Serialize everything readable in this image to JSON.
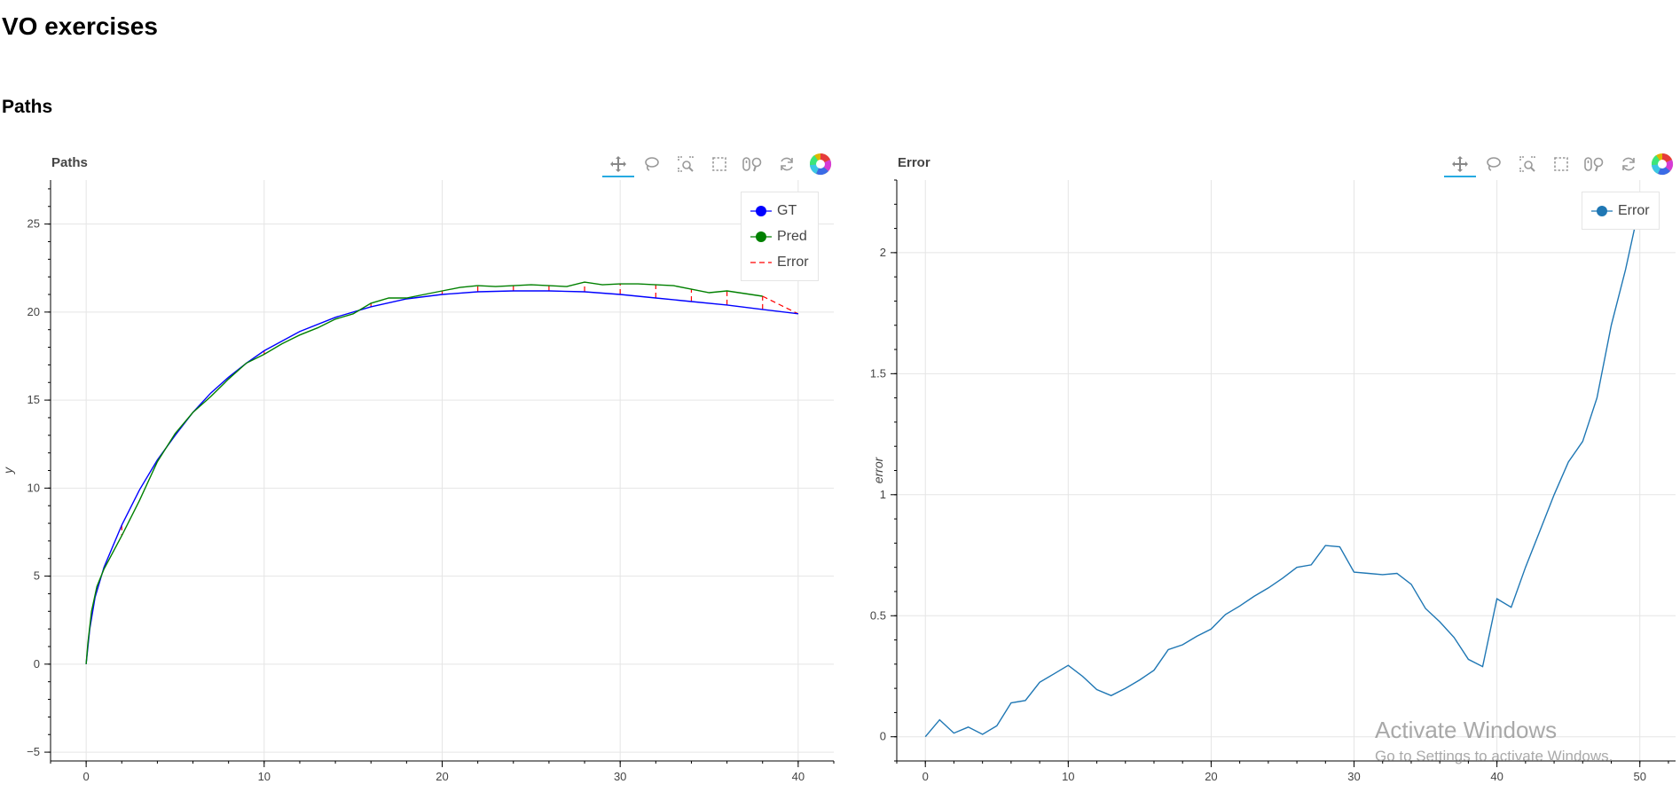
{
  "page": {
    "title": "VO exercises",
    "section_title": "Paths"
  },
  "toolbar": {
    "tools": [
      "pan-icon",
      "lasso-select-icon",
      "box-zoom-icon",
      "box-select-icon",
      "wheel-zoom-icon",
      "reset-icon",
      "bokeh-logo-icon"
    ],
    "active_tool": "pan-icon"
  },
  "watermark": {
    "line1": "Activate Windows",
    "line2": "Go to Settings to activate Windows."
  },
  "chart_data": [
    {
      "type": "line",
      "title": "Paths",
      "xlabel": "",
      "ylabel": "y",
      "xlim": [
        -2,
        42
      ],
      "ylim": [
        -5.5,
        27.5
      ],
      "x_ticks": [
        0,
        10,
        20,
        30,
        40
      ],
      "y_ticks": [
        -5,
        0,
        5,
        10,
        15,
        20,
        25
      ],
      "grid": true,
      "legend_position": "top-right",
      "series": [
        {
          "name": "GT",
          "color": "#0000ff",
          "x": [
            0,
            0.2,
            0.5,
            1,
            2,
            3,
            4,
            5,
            6,
            7,
            8,
            9,
            10,
            12,
            14,
            16,
            18,
            20,
            22,
            24,
            25,
            26,
            28,
            30,
            32,
            34,
            36,
            38,
            40
          ],
          "y": [
            0,
            2.0,
            3.8,
            5.5,
            7.9,
            9.9,
            11.6,
            13.0,
            14.3,
            15.4,
            16.3,
            17.1,
            17.8,
            18.9,
            19.7,
            20.3,
            20.75,
            21.0,
            21.15,
            21.2,
            21.2,
            21.2,
            21.15,
            21.0,
            20.8,
            20.6,
            20.4,
            20.15,
            19.9
          ]
        },
        {
          "name": "Pred",
          "color": "#008000",
          "x": [
            0,
            0.1,
            0.3,
            0.6,
            1,
            2,
            3,
            4,
            5,
            6,
            7,
            8,
            9,
            10,
            11,
            12,
            13,
            14,
            15,
            16,
            17,
            18,
            19,
            20,
            21,
            22,
            23,
            24,
            25,
            26,
            27,
            28,
            29,
            30,
            31,
            32,
            33,
            34,
            35,
            36,
            37,
            38
          ],
          "y": [
            0,
            1.2,
            3.0,
            4.4,
            5.4,
            7.3,
            9.3,
            11.5,
            13.1,
            14.3,
            15.2,
            16.2,
            17.1,
            17.6,
            18.2,
            18.7,
            19.1,
            19.6,
            19.9,
            20.5,
            20.8,
            20.8,
            21.0,
            21.2,
            21.4,
            21.5,
            21.45,
            21.5,
            21.55,
            21.5,
            21.45,
            21.7,
            21.55,
            21.6,
            21.6,
            21.55,
            21.5,
            21.3,
            21.1,
            21.2,
            21.05,
            20.9
          ]
        }
      ],
      "error_segments": [
        {
          "x": [
            2,
            2
          ],
          "y": [
            7.9,
            7.3
          ]
        },
        {
          "x": [
            4,
            4
          ],
          "y": [
            11.6,
            11.5
          ]
        },
        {
          "x": [
            10,
            10
          ],
          "y": [
            17.8,
            17.6
          ]
        },
        {
          "x": [
            16,
            16
          ],
          "y": [
            20.3,
            20.5
          ]
        },
        {
          "x": [
            18,
            18
          ],
          "y": [
            20.75,
            20.8
          ]
        },
        {
          "x": [
            20,
            20
          ],
          "y": [
            21.0,
            21.2
          ]
        },
        {
          "x": [
            22,
            22
          ],
          "y": [
            21.15,
            21.5
          ]
        },
        {
          "x": [
            24,
            24
          ],
          "y": [
            21.2,
            21.5
          ]
        },
        {
          "x": [
            26,
            26
          ],
          "y": [
            21.2,
            21.5
          ]
        },
        {
          "x": [
            28,
            28
          ],
          "y": [
            21.15,
            21.7
          ]
        },
        {
          "x": [
            30,
            30
          ],
          "y": [
            21.0,
            21.6
          ]
        },
        {
          "x": [
            32,
            32
          ],
          "y": [
            20.8,
            21.55
          ]
        },
        {
          "x": [
            34,
            34
          ],
          "y": [
            20.6,
            21.3
          ]
        },
        {
          "x": [
            36,
            36
          ],
          "y": [
            20.4,
            21.2
          ]
        },
        {
          "x": [
            38,
            38
          ],
          "y": [
            20.15,
            20.9
          ]
        },
        {
          "x": [
            38,
            40
          ],
          "y": [
            20.9,
            19.9
          ]
        }
      ],
      "legend": [
        "GT",
        "Pred",
        "Error"
      ],
      "error_color": "#ff0000"
    },
    {
      "type": "line",
      "title": "Error",
      "xlabel": "",
      "ylabel": "error",
      "xlim": [
        -2,
        52.5
      ],
      "ylim": [
        -0.1,
        2.3
      ],
      "x_ticks": [
        0,
        10,
        20,
        30,
        40,
        50
      ],
      "y_ticks": [
        0,
        0.5,
        1,
        1.5,
        2
      ],
      "grid": true,
      "legend_position": "top-right",
      "series": [
        {
          "name": "Error",
          "color": "#1f77b4",
          "x": [
            0,
            1,
            2,
            3,
            4,
            5,
            6,
            7,
            8,
            9,
            10,
            11,
            12,
            13,
            14,
            15,
            16,
            17,
            18,
            19,
            20,
            21,
            22,
            23,
            24,
            25,
            26,
            27,
            28,
            29,
            30,
            31,
            32,
            33,
            34,
            35,
            36,
            37,
            38,
            39,
            40,
            41,
            42,
            43,
            44,
            45,
            46,
            47,
            48,
            49,
            50
          ],
          "y": [
            0.0,
            0.07,
            0.015,
            0.04,
            0.01,
            0.045,
            0.14,
            0.15,
            0.225,
            0.26,
            0.295,
            0.25,
            0.195,
            0.17,
            0.2,
            0.235,
            0.275,
            0.36,
            0.38,
            0.415,
            0.445,
            0.505,
            0.54,
            0.58,
            0.615,
            0.655,
            0.7,
            0.71,
            0.79,
            0.785,
            0.68,
            0.675,
            0.67,
            0.675,
            0.63,
            0.53,
            0.475,
            0.41,
            0.32,
            0.29,
            0.57,
            0.535,
            0.7,
            0.85,
            1.0,
            1.135,
            1.22,
            1.4,
            1.7,
            1.93,
            2.2
          ]
        }
      ],
      "legend": [
        "Error"
      ]
    }
  ]
}
